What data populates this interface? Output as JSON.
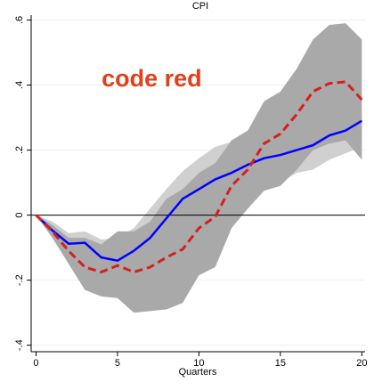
{
  "chart_data": {
    "type": "line",
    "title": "CPI",
    "x_label": "Quarters",
    "annotation": {
      "text": "code red",
      "x": 7.1,
      "y": 0.415,
      "color": "#e0401a"
    },
    "x": [
      0,
      1,
      2,
      3,
      4,
      5,
      6,
      7,
      8,
      9,
      10,
      11,
      12,
      13,
      14,
      15,
      16,
      17,
      18,
      19,
      20
    ],
    "xlim": [
      -0.3,
      20.2
    ],
    "xticks": [
      0,
      5,
      10,
      15,
      20
    ],
    "ylim": [
      -0.42,
      0.615
    ],
    "yticks": [
      {
        "value": -0.4,
        "label": "-.4"
      },
      {
        "value": -0.2,
        "label": "-.2"
      },
      0,
      {
        "value": 0.2,
        "label": ".2"
      },
      {
        "value": 0.4,
        "label": ".4"
      },
      {
        "value": 0.6,
        "label": ".6"
      }
    ],
    "grid": true,
    "zero_line": true,
    "bands": [
      {
        "color": "#d0d0d0",
        "upper": [
          0,
          -0.02,
          -0.055,
          -0.05,
          -0.075,
          -0.07,
          -0.04,
          0.02,
          0.08,
          0.135,
          0.175,
          0.21,
          0.225,
          0.245,
          0.27,
          0.28,
          0.285,
          0.28,
          0.27,
          0.28,
          0.29
        ],
        "lower": [
          0,
          -0.07,
          -0.12,
          -0.12,
          -0.19,
          -0.2,
          -0.18,
          -0.15,
          -0.09,
          -0.03,
          -0.005,
          0.02,
          0.04,
          0.07,
          0.08,
          0.1,
          0.13,
          0.14,
          0.17,
          0.19,
          0.21
        ]
      },
      {
        "color": "#a9a9a9",
        "upper": [
          0,
          -0.03,
          -0.07,
          -0.07,
          -0.09,
          -0.05,
          -0.05,
          -0.02,
          0.05,
          0.08,
          0.13,
          0.16,
          0.23,
          0.26,
          0.35,
          0.38,
          0.45,
          0.54,
          0.585,
          0.59,
          0.54
        ],
        "lower": [
          0,
          -0.07,
          -0.15,
          -0.23,
          -0.25,
          -0.255,
          -0.3,
          -0.295,
          -0.29,
          -0.27,
          -0.185,
          -0.16,
          -0.04,
          0.02,
          0.075,
          0.09,
          0.14,
          0.2,
          0.22,
          0.23,
          0.17
        ]
      }
    ],
    "series": [
      {
        "color": "#0000ff",
        "dashed": false,
        "values": [
          0,
          -0.047,
          -0.088,
          -0.085,
          -0.13,
          -0.14,
          -0.11,
          -0.07,
          -0.01,
          0.05,
          0.08,
          0.11,
          0.13,
          0.155,
          0.175,
          0.185,
          0.2,
          0.215,
          0.245,
          0.26,
          0.29
        ]
      },
      {
        "color": "#d62020",
        "dashed": true,
        "values": [
          0,
          -0.05,
          -0.11,
          -0.16,
          -0.175,
          -0.155,
          -0.175,
          -0.16,
          -0.13,
          -0.105,
          -0.04,
          -0.005,
          0.09,
          0.14,
          0.22,
          0.25,
          0.31,
          0.38,
          0.405,
          0.41,
          0.355
        ]
      }
    ]
  }
}
